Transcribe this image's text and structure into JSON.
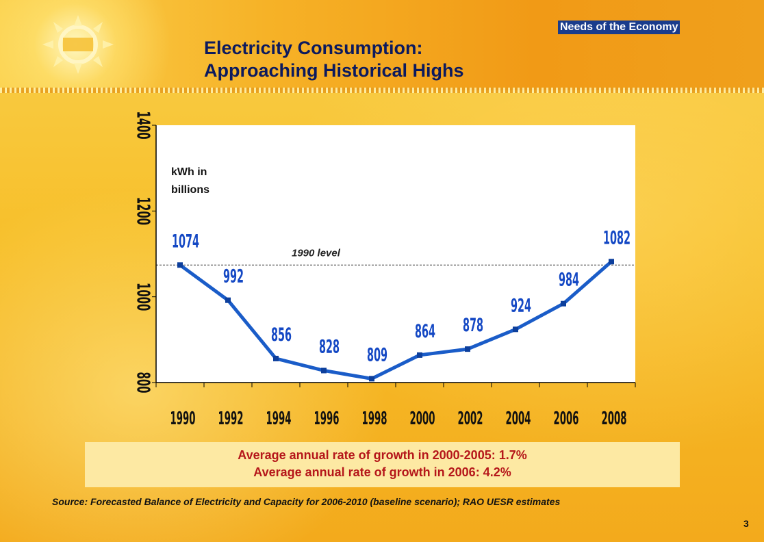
{
  "badge": "Needs of the Economy",
  "title": {
    "line1": "Electricity Consumption:",
    "line2": "Approaching Historical Highs"
  },
  "chart_data": {
    "type": "line",
    "unit_label_line1": "kWh in",
    "unit_label_line2": "billions",
    "x": [
      "1990",
      "1992",
      "1994",
      "1996",
      "1998",
      "2000",
      "2002",
      "2004",
      "2006",
      "2008"
    ],
    "values": [
      1074,
      992,
      856,
      828,
      809,
      864,
      878,
      924,
      984,
      1082
    ],
    "yticks": [
      "800",
      "1000",
      "1200",
      "1400"
    ],
    "ylim": [
      800,
      1400
    ],
    "reference_line": {
      "value": 1074,
      "label": "1990 level"
    },
    "line_color": "#1a5cc8"
  },
  "growth": {
    "line1": "Average annual rate of growth in 2000-2005: 1.7%",
    "line2": "Average annual rate of growth in 2006: 4.2%"
  },
  "source": "Source: Forecasted Balance of Electricity and Capacity for 2006-2010 (baseline scenario); RAO UESR estimates",
  "page_number": "3"
}
